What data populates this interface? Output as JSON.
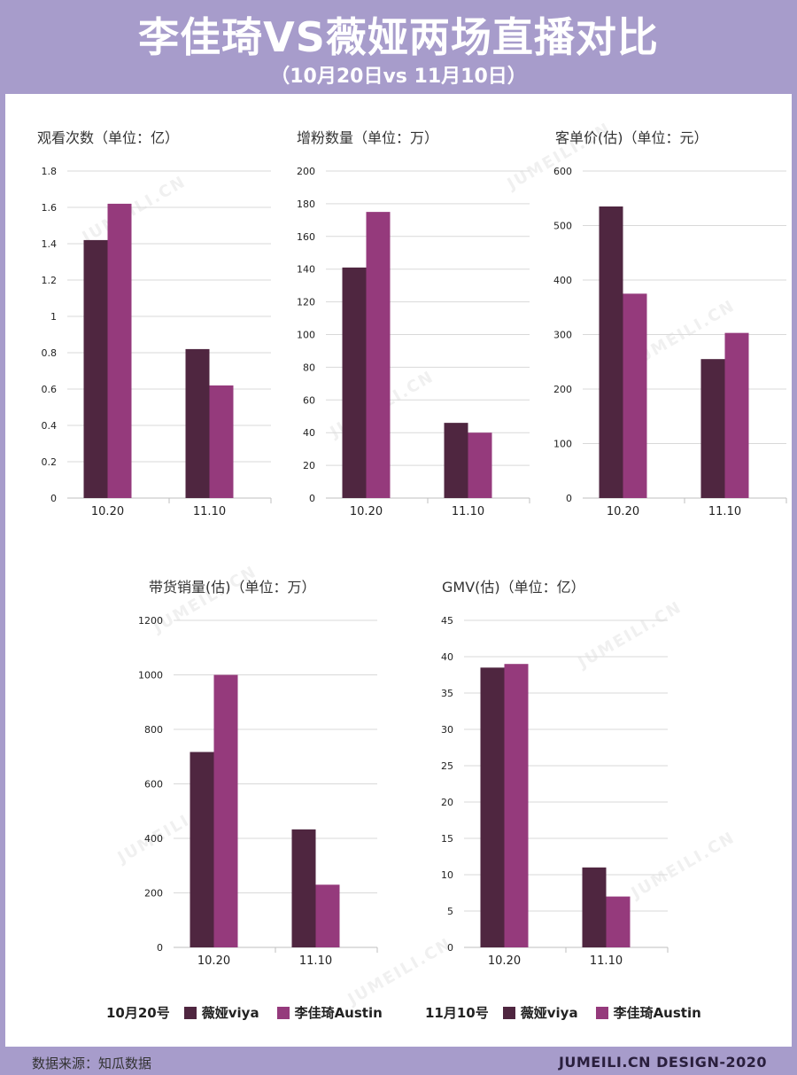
{
  "header": {
    "title": "李佳琦VS薇娅两场直播对比",
    "subtitle": "（10月20日vs 11月10日）"
  },
  "watermark_text": "JUMEILI.CN",
  "colors": {
    "viya": "#4f2640",
    "austin": "#953a7c",
    "grid": "#d9d9d9",
    "axis": "#bfbfbf"
  },
  "chart_data": [
    {
      "type": "bar",
      "title": "观看次数（单位：亿）",
      "categories": [
        "10.20",
        "11.10"
      ],
      "series": [
        {
          "name": "薇娅viya",
          "values": [
            1.42,
            0.82
          ]
        },
        {
          "name": "李佳琦Austin",
          "values": [
            1.62,
            0.62
          ]
        }
      ],
      "ylim": [
        0,
        1.8
      ],
      "yticks": [
        "0",
        "0.2",
        "0.4",
        "0.6",
        "0.8",
        "1",
        "1.2",
        "1.4",
        "1.6",
        "1.8"
      ],
      "grid": true
    },
    {
      "type": "bar",
      "title": "增粉数量（单位：万）",
      "categories": [
        "10.20",
        "11.10"
      ],
      "series": [
        {
          "name": "薇娅viya",
          "values": [
            141,
            46
          ]
        },
        {
          "name": "李佳琦Austin",
          "values": [
            175,
            40
          ]
        }
      ],
      "ylim": [
        0,
        200
      ],
      "yticks": [
        "0",
        "20",
        "40",
        "60",
        "80",
        "100",
        "120",
        "140",
        "160",
        "180",
        "200"
      ],
      "grid": true
    },
    {
      "type": "bar",
      "title": "客单价(估)（单位：元）",
      "categories": [
        "10.20",
        "11.10"
      ],
      "series": [
        {
          "name": "薇娅viya",
          "values": [
            535,
            255
          ]
        },
        {
          "name": "李佳琦Austin",
          "values": [
            375,
            303
          ]
        }
      ],
      "ylim": [
        0,
        600
      ],
      "yticks": [
        "0",
        "100",
        "200",
        "300",
        "400",
        "500",
        "600"
      ],
      "grid": true
    },
    {
      "type": "bar",
      "title": "带货销量(估)（单位：万）",
      "categories": [
        "10.20",
        "11.10"
      ],
      "series": [
        {
          "name": "薇娅viya",
          "values": [
            717,
            433
          ]
        },
        {
          "name": "李佳琦Austin",
          "values": [
            1000,
            230
          ]
        }
      ],
      "ylim": [
        0,
        1200
      ],
      "yticks": [
        "0",
        "200",
        "400",
        "600",
        "800",
        "1000",
        "1200"
      ],
      "grid": true
    },
    {
      "type": "bar",
      "title": "GMV(估)（单位：亿）",
      "categories": [
        "10.20",
        "11.10"
      ],
      "series": [
        {
          "name": "薇娅viya",
          "values": [
            38.5,
            11
          ]
        },
        {
          "name": "李佳琦Austin",
          "values": [
            39,
            7
          ]
        }
      ],
      "ylim": [
        0,
        45
      ],
      "yticks": [
        "0",
        "5",
        "10",
        "15",
        "20",
        "25",
        "30",
        "35",
        "40",
        "45"
      ],
      "grid": true
    }
  ],
  "legends": [
    {
      "date": "10月20号",
      "items": [
        "薇娅viya",
        "李佳琦Austin"
      ]
    },
    {
      "date": "11月10号",
      "items": [
        "薇娅viya",
        "李佳琦Austin"
      ]
    }
  ],
  "footer": {
    "source": "数据来源：知瓜数据",
    "credit": "JUMEILI.CN DESIGN-2020"
  }
}
